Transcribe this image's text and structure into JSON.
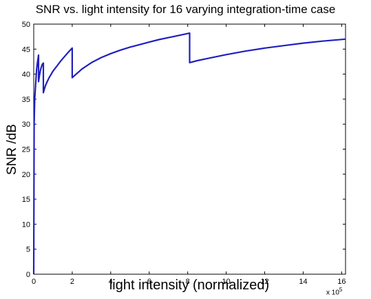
{
  "chart_data": {
    "type": "line",
    "title": "SNR vs. light intensity for 16 varying integration-time case",
    "xlabel": "light intensity (normalized)",
    "ylabel": "SNR /dB",
    "x_multiplier_label": "x 10",
    "x_multiplier_exponent": "5",
    "xlim": [
      0,
      16.2
    ],
    "ylim": [
      0,
      50
    ],
    "xticks": [
      0,
      2,
      4,
      6,
      8,
      10,
      12,
      14,
      16
    ],
    "yticks": [
      0,
      5,
      10,
      15,
      20,
      25,
      30,
      35,
      40,
      45,
      50
    ],
    "grid": false,
    "line_color": "#1f1fbf",
    "series": [
      {
        "x": [
          0,
          0.02,
          0.05,
          0.1,
          0.15,
          0.2,
          0.25,
          0.25,
          0.3,
          0.35,
          0.4,
          0.45,
          0.5,
          0.5,
          0.55,
          0.6,
          0.65,
          0.7,
          0.8,
          1.0,
          1.2,
          1.4,
          1.6,
          1.8,
          2.0,
          2.0,
          2.5,
          3.0,
          3.5,
          4.0,
          4.5,
          5.0,
          5.5,
          6.0,
          6.5,
          7.0,
          7.5,
          8.1,
          8.1,
          8.5,
          9.0,
          10.0,
          11.0,
          12.0,
          13.0,
          14.0,
          15.0,
          16.2
        ],
        "y": [
          0,
          30,
          35,
          38,
          41,
          42.5,
          43.8,
          38.5,
          39.8,
          40.8,
          41.5,
          42.0,
          42.2,
          36.3,
          37.0,
          37.6,
          38.1,
          38.5,
          39.3,
          40.6,
          41.6,
          42.6,
          43.5,
          44.4,
          45.2,
          39.3,
          41.0,
          42.3,
          43.3,
          44.1,
          44.8,
          45.4,
          45.9,
          46.4,
          46.9,
          47.3,
          47.7,
          48.2,
          42.3,
          42.7,
          43.1,
          43.9,
          44.6,
          45.2,
          45.7,
          46.2,
          46.6,
          47.0
        ]
      }
    ]
  }
}
